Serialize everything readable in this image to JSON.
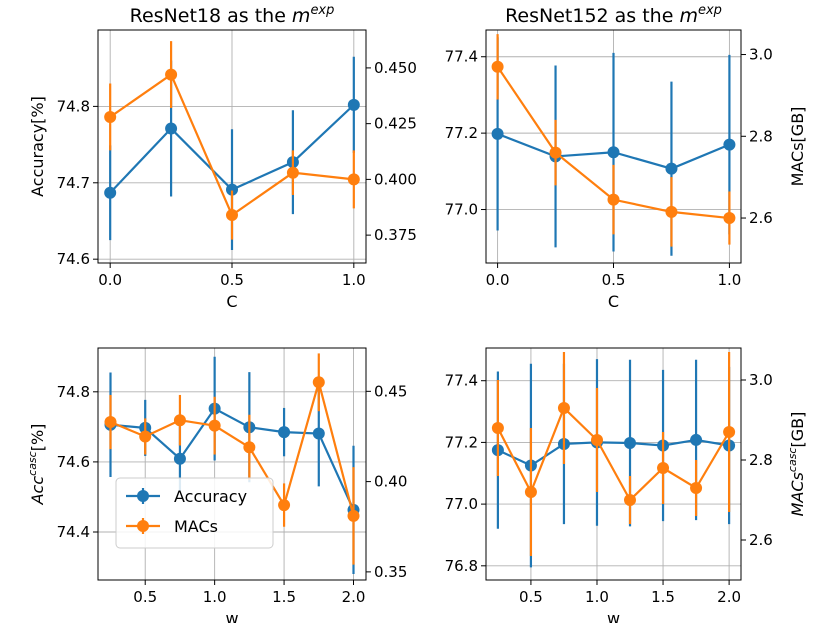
{
  "colors": {
    "accuracy": "#1f77b4",
    "macs": "#ff7f0e",
    "grid": "#b0b0b0",
    "frame": "#000000",
    "legend_border": "#cccccc"
  },
  "legend": {
    "accuracy_label": "Accuracy",
    "macs_label": "MACs"
  },
  "chart_data": [
    {
      "type": "line",
      "title": "ResNet18 as the m^exp",
      "title_parts": {
        "prefix": "ResNet18 as the ",
        "var": "m",
        "sup": "exp"
      },
      "xlabel": "C",
      "ylabel": "Accuracy[%]",
      "ylabel_parts": {
        "text": "Accuracy[%]"
      },
      "ylabel2": "",
      "ylabel2_parts": null,
      "xlim": [
        -0.05,
        1.05
      ],
      "ylim": [
        74.595,
        74.9
      ],
      "y2lim": [
        0.3625,
        0.467
      ],
      "xticks": [
        0.0,
        0.5,
        1.0
      ],
      "xtick_labels": [
        "0.0",
        "0.5",
        "1.0"
      ],
      "yticks": [
        74.6,
        74.7,
        74.8
      ],
      "ytick_labels": [
        "74.6",
        "74.7",
        "74.8"
      ],
      "y2ticks": [
        0.375,
        0.4,
        0.425,
        0.45
      ],
      "y2tick_labels": [
        "0.375",
        "0.400",
        "0.425",
        "0.450"
      ],
      "x": [
        0.0,
        0.25,
        0.5,
        0.75,
        1.0
      ],
      "series": [
        {
          "name": "Accuracy",
          "axis": "left",
          "values": [
            74.687,
            74.771,
            74.691,
            74.727,
            74.802
          ],
          "err": [
            0.062,
            0.089,
            0.079,
            0.068,
            0.063
          ]
        },
        {
          "name": "MACs",
          "axis": "right",
          "values": [
            0.428,
            0.447,
            0.384,
            0.403,
            0.4
          ],
          "err": [
            0.015,
            0.015,
            0.011,
            0.01,
            0.013
          ]
        }
      ],
      "legend": false
    },
    {
      "type": "line",
      "title": "ResNet152 as the m^exp",
      "title_parts": {
        "prefix": "ResNet152 as the ",
        "var": "m",
        "sup": "exp"
      },
      "xlabel": "C",
      "ylabel": "",
      "ylabel_parts": null,
      "ylabel2": "MACs[GB]",
      "ylabel2_parts": {
        "text": "MACs[GB]"
      },
      "xlim": [
        -0.05,
        1.05
      ],
      "ylim": [
        76.86,
        77.47
      ],
      "y2lim": [
        2.49,
        3.06
      ],
      "xticks": [
        0.0,
        0.5,
        1.0
      ],
      "xtick_labels": [
        "0.0",
        "0.5",
        "1.0"
      ],
      "yticks": [
        77.0,
        77.2,
        77.4
      ],
      "ytick_labels": [
        "77.0",
        "77.2",
        "77.4"
      ],
      "y2ticks": [
        2.6,
        2.8,
        3.0
      ],
      "y2tick_labels": [
        "2.6",
        "2.8",
        "3.0"
      ],
      "x": [
        0.0,
        0.25,
        0.5,
        0.75,
        1.0
      ],
      "series": [
        {
          "name": "Accuracy",
          "axis": "left",
          "values": [
            77.198,
            77.139,
            77.15,
            77.107,
            77.17
          ],
          "err": [
            0.253,
            0.238,
            0.26,
            0.228,
            0.235
          ]
        },
        {
          "name": "MACs",
          "axis": "right",
          "values": [
            2.97,
            2.76,
            2.645,
            2.615,
            2.6
          ],
          "err": [
            0.08,
            0.08,
            0.085,
            0.085,
            0.065
          ]
        }
      ],
      "legend": false
    },
    {
      "type": "line",
      "title": "",
      "title_parts": null,
      "xlabel": "w",
      "ylabel": "Acc^casc[%]",
      "ylabel_parts": {
        "var": "Acc",
        "sup": "casc",
        "suffix": "[%]"
      },
      "ylabel2": "",
      "ylabel2_parts": null,
      "xlim": [
        0.16,
        2.09
      ],
      "ylim": [
        74.263,
        74.925
      ],
      "y2lim": [
        0.3455,
        0.474
      ],
      "xticks": [
        0.5,
        1.0,
        1.5,
        2.0
      ],
      "xtick_labels": [
        "0.5",
        "1.0",
        "1.5",
        "2.0"
      ],
      "yticks": [
        74.4,
        74.6,
        74.8
      ],
      "ytick_labels": [
        "74.4",
        "74.6",
        "74.8"
      ],
      "y2ticks": [
        0.35,
        0.4,
        0.45
      ],
      "y2tick_labels": [
        "0.35",
        "0.40",
        "0.45"
      ],
      "x": [
        0.25,
        0.5,
        0.75,
        1.0,
        1.25,
        1.5,
        1.75,
        2.0
      ],
      "series": [
        {
          "name": "Accuracy",
          "axis": "left",
          "values": [
            74.706,
            74.697,
            74.609,
            74.752,
            74.699,
            74.685,
            74.681,
            74.463
          ],
          "err": [
            0.149,
            0.08,
            0.095,
            0.148,
            0.157,
            0.069,
            0.151,
            0.183
          ]
        },
        {
          "name": "MACs",
          "axis": "right",
          "values": [
            0.433,
            0.425,
            0.434,
            0.431,
            0.419,
            0.387,
            0.455,
            0.381
          ],
          "err": [
            0.015,
            0.01,
            0.014,
            0.016,
            0.018,
            0.012,
            0.016,
            0.027
          ]
        }
      ],
      "legend": true,
      "legend_position": "lower-left"
    },
    {
      "type": "line",
      "title": "",
      "title_parts": null,
      "xlabel": "w",
      "ylabel": "",
      "ylabel_parts": null,
      "ylabel2": "MACs^casc[GB]",
      "ylabel2_parts": {
        "var": "MACs",
        "sup": "casc",
        "suffix": "[GB]"
      },
      "xlim": [
        0.16,
        2.09
      ],
      "ylim": [
        76.754,
        77.506
      ],
      "y2lim": [
        2.5,
        3.08
      ],
      "xticks": [
        0.5,
        1.0,
        1.5,
        2.0
      ],
      "xtick_labels": [
        "0.5",
        "1.0",
        "1.5",
        "2.0"
      ],
      "yticks": [
        76.8,
        77.0,
        77.2,
        77.4
      ],
      "ytick_labels": [
        "76.8",
        "77.0",
        "77.2",
        "77.4"
      ],
      "y2ticks": [
        2.6,
        2.8,
        3.0
      ],
      "y2tick_labels": [
        "2.6",
        "2.8",
        "3.0"
      ],
      "x": [
        0.25,
        0.5,
        0.75,
        1.0,
        1.25,
        1.5,
        1.75,
        2.0
      ],
      "series": [
        {
          "name": "Accuracy",
          "axis": "left",
          "values": [
            77.175,
            77.125,
            77.195,
            77.2,
            77.198,
            77.19,
            77.208,
            77.19
          ],
          "err": [
            0.255,
            0.33,
            0.26,
            0.27,
            0.27,
            0.245,
            0.26,
            0.255
          ]
        },
        {
          "name": "MACs",
          "axis": "right",
          "values": [
            2.88,
            2.72,
            2.93,
            2.85,
            2.7,
            2.78,
            2.73,
            2.87
          ],
          "err": [
            0.12,
            0.16,
            0.14,
            0.13,
            0.06,
            0.09,
            0.07,
            0.2
          ]
        }
      ],
      "legend": false
    }
  ]
}
